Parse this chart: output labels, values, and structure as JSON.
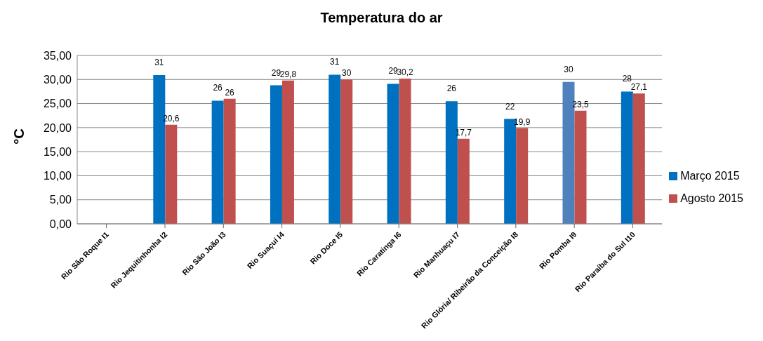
{
  "chart_data": {
    "type": "bar",
    "title": "Temperatura do ar",
    "ylabel": "°C",
    "categories": [
      "Rio São Roque I1",
      "Rio Jequitinhonha  I2",
      "Rio São João  I3",
      "Rio Suaçuí I4",
      "Rio Doce I5",
      "Rio Caratinga I6",
      "Rio Manhuaçu I7",
      "Rio Glória/ Ribeirão da Conceição I8",
      "Rio Pomba I9",
      "Rio Paraíba do Sul I10"
    ],
    "series": [
      {
        "name": "Março 2015",
        "color": "#0070c0",
        "colors": [
          "#0070c0",
          "#0070c0",
          "#0070c0",
          "#0070c0",
          "#0070c0",
          "#0070c0",
          "#0070c0",
          "#0070c0",
          "#4f81bd",
          "#0070c0"
        ],
        "values": [
          null,
          30.9,
          25.6,
          28.8,
          31.0,
          29.1,
          25.5,
          21.8,
          29.5,
          27.5
        ],
        "value_labels": [
          null,
          "31",
          "26",
          "29",
          "31",
          "29",
          "26",
          "22",
          "30",
          "28"
        ]
      },
      {
        "name": "Agosto 2015",
        "color": "#c0504d",
        "values": [
          null,
          20.6,
          26,
          29.8,
          30,
          30.2,
          17.7,
          19.9,
          23.5,
          27.1
        ],
        "value_labels": [
          null,
          "20,6",
          "26",
          "29,8",
          "30",
          "30,2",
          "17,7",
          "19,9",
          "23,5",
          "27,1"
        ]
      }
    ],
    "ylim": [
      0,
      35
    ],
    "yticks": [
      {
        "value": 0,
        "label": "0,00"
      },
      {
        "value": 5,
        "label": "5,00"
      },
      {
        "value": 10,
        "label": "10,00"
      },
      {
        "value": 15,
        "label": "15,00"
      },
      {
        "value": 20,
        "label": "20,00"
      },
      {
        "value": 25,
        "label": "25,00"
      },
      {
        "value": 30,
        "label": "30,00"
      },
      {
        "value": 35,
        "label": "35,00"
      }
    ],
    "grid": "y",
    "legend": "right"
  }
}
